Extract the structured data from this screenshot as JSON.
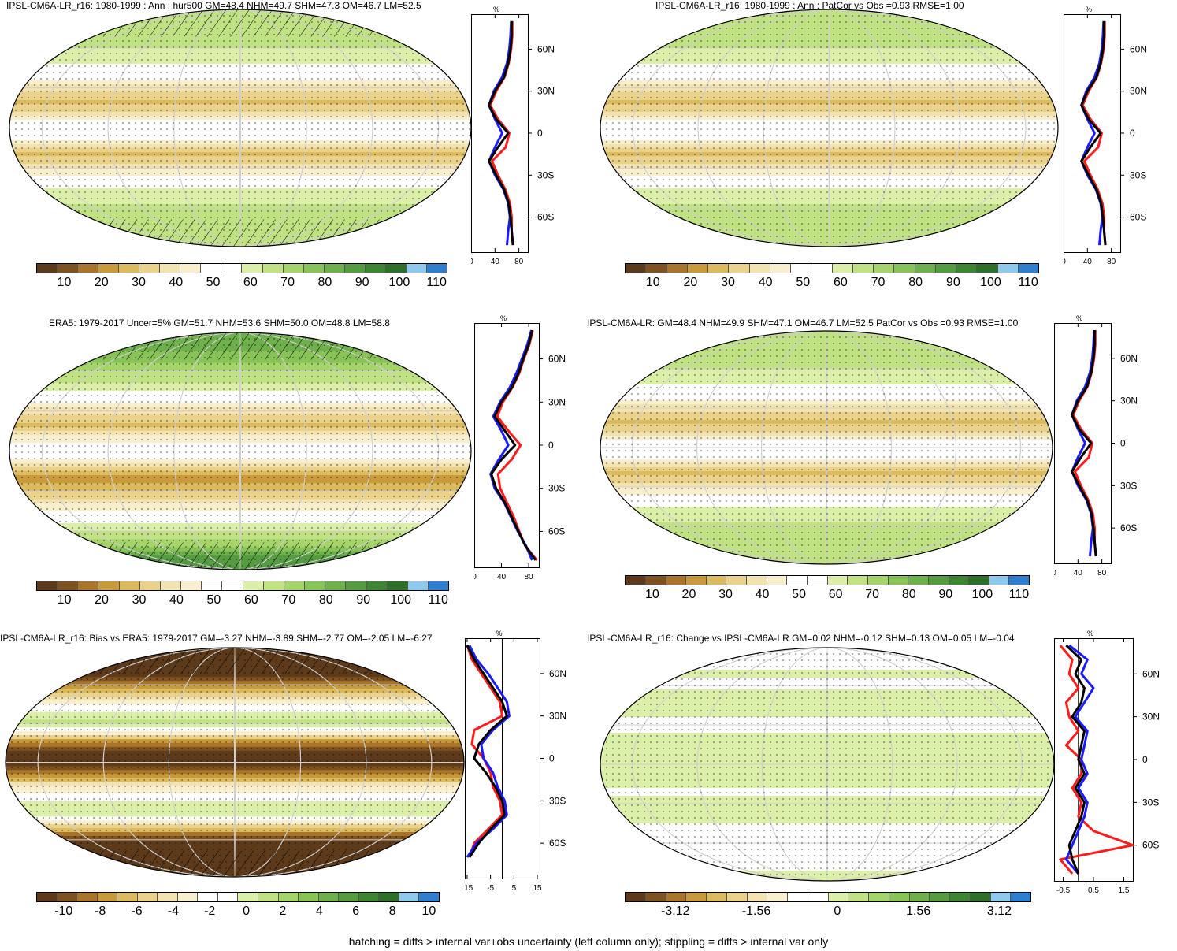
{
  "footer": "hatching = diffs > internal var+obs uncertainty (left column only); stippling = diffs > internal var only",
  "colors": {
    "model": "#000000",
    "obs_blue": "#1a1aff",
    "obs_red": "#ff1a1a"
  },
  "palettes": {
    "absolute": [
      "#5c3a1a",
      "#7f5221",
      "#a8752a",
      "#c89a3b",
      "#dcbb5e",
      "#ead28a",
      "#f3e3b0",
      "#f9efcf",
      "#ffffff",
      "#ffffff",
      "#dcefa8",
      "#c0e283",
      "#a4d46a",
      "#88c358",
      "#6eb04b",
      "#559b40",
      "#3e8533",
      "#2e6f2a",
      "#8ec9ee",
      "#2f7fd0"
    ],
    "diff": [
      "#5c3a1a",
      "#7f5221",
      "#a8752a",
      "#c89a3b",
      "#dcbb5e",
      "#ead28a",
      "#f3e3b0",
      "#f9efcf",
      "#ffffff",
      "#ffffff",
      "#dcefa8",
      "#c0e283",
      "#a4d46a",
      "#88c358",
      "#6eb04b",
      "#559b40",
      "#3e8533",
      "#2e6f2a",
      "#8ec9ee",
      "#2f7fd0"
    ]
  },
  "panels": [
    {
      "title": "IPSL-CM6A-LR_r16: 1980-1999 : Ann : hur500 GM=48.4 NHM=49.7 SHM=47.3 OM=46.7 LM=52.5",
      "colorbar_labels": [
        "10",
        "20",
        "30",
        "40",
        "50",
        "60",
        "70",
        "80",
        "90",
        "100",
        "110"
      ],
      "profile_unit": "%",
      "profile_xticks": [
        "0",
        "40",
        "80"
      ],
      "profile_yticks": [
        "60N",
        "30N",
        "0",
        "30S",
        "60S"
      ],
      "hatched": true
    },
    {
      "title": "IPSL-CM6A-LR_r16: 1980-1999 : Ann : PatCor vs Obs =0.93 RMSE=1.00",
      "colorbar_labels": [
        "10",
        "20",
        "30",
        "40",
        "50",
        "60",
        "70",
        "80",
        "90",
        "100",
        "110"
      ],
      "profile_unit": "%",
      "profile_xticks": [
        "0",
        "40",
        "80"
      ],
      "profile_yticks": [
        "60N",
        "30N",
        "0",
        "30S",
        "60S"
      ],
      "hatched": false
    },
    {
      "title": "ERA5: 1979-2017 Uncer=5% GM=51.7 NHM=53.6 SHM=50.0 OM=48.8 LM=58.8",
      "colorbar_labels": [
        "10",
        "20",
        "30",
        "40",
        "50",
        "60",
        "70",
        "80",
        "90",
        "100",
        "110"
      ],
      "profile_unit": "%",
      "profile_xticks": [
        "0",
        "40",
        "80"
      ],
      "profile_yticks": [
        "60N",
        "30N",
        "0",
        "30S",
        "60S"
      ],
      "hatched": true
    },
    {
      "title": "IPSL-CM6A-LR: GM=48.4 NHM=49.9 SHM=47.1 OM=46.7 LM=52.5 PatCor vs Obs =0.93 RMSE=1.00",
      "colorbar_labels": [
        "10",
        "20",
        "30",
        "40",
        "50",
        "60",
        "70",
        "80",
        "90",
        "100",
        "110"
      ],
      "profile_unit": "%",
      "profile_xticks": [
        "0",
        "40",
        "80"
      ],
      "profile_yticks": [
        "60N",
        "30N",
        "0",
        "30S",
        "60S"
      ],
      "hatched": false
    },
    {
      "title": "IPSL-CM6A-LR_r16: Bias vs ERA5: 1979-2017 GM=-3.27 NHM=-3.89 SHM=-2.77 OM=-2.05 LM=-6.27",
      "colorbar_labels": [
        "-10",
        "-8",
        "-6",
        "-4",
        "-2",
        "0",
        "2",
        "4",
        "6",
        "8",
        "10"
      ],
      "profile_unit": "%",
      "profile_xticks": [
        "-15",
        "-5",
        "5",
        "15"
      ],
      "profile_yticks": [
        "60N",
        "30N",
        "0",
        "30S",
        "60S"
      ],
      "hatched": true
    },
    {
      "title": "IPSL-CM6A-LR_r16: Change vs IPSL-CM6A-LR GM=0.02 NHM=-0.12 SHM=0.13 OM=0.05 LM=-0.04",
      "colorbar_labels": [
        "-3.12",
        "-1.56",
        "0",
        "1.56",
        "3.12"
      ],
      "profile_unit": "%",
      "profile_xticks": [
        "-0.5",
        "0.5",
        "1.5"
      ],
      "profile_yticks": [
        "60N",
        "30N",
        "0",
        "30S",
        "60S"
      ],
      "hatched": false
    }
  ],
  "chart_data": [
    {
      "type": "heatmap",
      "title": "IPSL-CM6A-LR_r16: 1980-1999 : Ann : hur500 GM=48.4 NHM=49.7 SHM=47.3 OM=46.7 LM=52.5",
      "colorbar": [
        10,
        20,
        30,
        40,
        50,
        60,
        70,
        80,
        90,
        100,
        110
      ],
      "zonal_profile": {
        "xlabel": "%",
        "xlim": [
          0,
          95
        ],
        "lat": [
          80,
          70,
          60,
          50,
          40,
          30,
          20,
          10,
          0,
          -10,
          -20,
          -30,
          -40,
          -50,
          -60,
          -70,
          -80
        ],
        "series": [
          {
            "color": "black",
            "values": [
              68,
              68,
              66,
              62,
              55,
              40,
              30,
              42,
              62,
              45,
              30,
              42,
              55,
              63,
              66,
              68,
              70
            ]
          },
          {
            "color": "blue",
            "values": [
              67,
              66,
              64,
              60,
              52,
              38,
              30,
              40,
              52,
              40,
              30,
              40,
              54,
              62,
              65,
              62,
              60
            ]
          },
          {
            "color": "red",
            "values": [
              69,
              69,
              67,
              63,
              56,
              42,
              32,
              45,
              64,
              58,
              35,
              45,
              57,
              65,
              68,
              68,
              70
            ]
          }
        ]
      }
    },
    {
      "type": "heatmap",
      "title": "IPSL-CM6A-LR_r16: 1980-1999 : Ann : PatCor vs Obs =0.93 RMSE=1.00",
      "colorbar": [
        10,
        20,
        30,
        40,
        50,
        60,
        70,
        80,
        90,
        100,
        110
      ],
      "zonal_profile": {
        "xlabel": "%",
        "xlim": [
          0,
          95
        ],
        "lat": [
          80,
          70,
          60,
          50,
          40,
          30,
          20,
          10,
          0,
          -10,
          -20,
          -30,
          -40,
          -50,
          -60,
          -70,
          -80
        ],
        "series": [
          {
            "color": "black",
            "values": [
              68,
              68,
              66,
              62,
              55,
              40,
              30,
              42,
              62,
              45,
              30,
              42,
              55,
              63,
              66,
              68,
              70
            ]
          },
          {
            "color": "blue",
            "values": [
              67,
              66,
              64,
              60,
              52,
              38,
              30,
              40,
              52,
              40,
              30,
              40,
              54,
              62,
              65,
              62,
              60
            ]
          },
          {
            "color": "red",
            "values": [
              69,
              69,
              67,
              63,
              56,
              42,
              32,
              45,
              64,
              58,
              35,
              45,
              57,
              65,
              68,
              68,
              70
            ]
          }
        ]
      }
    },
    {
      "type": "heatmap",
      "title": "ERA5: 1979-2017 Uncer=5% GM=51.7 NHM=53.6 SHM=50.0 OM=48.8 LM=58.8",
      "colorbar": [
        10,
        20,
        30,
        40,
        50,
        60,
        70,
        80,
        90,
        100,
        110
      ],
      "zonal_profile": {
        "xlabel": "%",
        "xlim": [
          0,
          95
        ],
        "lat": [
          80,
          70,
          60,
          50,
          40,
          30,
          20,
          10,
          0,
          -10,
          -20,
          -30,
          -40,
          -50,
          -60,
          -70,
          -80
        ],
        "series": [
          {
            "color": "black",
            "values": [
              85,
              80,
              72,
              65,
              55,
              40,
              30,
              45,
              60,
              40,
              25,
              32,
              45,
              55,
              65,
              75,
              90
            ]
          },
          {
            "color": "blue",
            "values": [
              84,
              78,
              70,
              62,
              52,
              38,
              28,
              40,
              50,
              36,
              24,
              30,
              44,
              54,
              64,
              76,
              85
            ]
          },
          {
            "color": "red",
            "values": [
              86,
              81,
              73,
              66,
              56,
              42,
              34,
              50,
              68,
              55,
              35,
              38,
              48,
              58,
              66,
              75,
              92
            ]
          }
        ]
      }
    },
    {
      "type": "heatmap",
      "title": "IPSL-CM6A-LR: GM=48.4 NHM=49.9 SHM=47.1 OM=46.7 LM=52.5 PatCor vs Obs =0.93 RMSE=1.00",
      "colorbar": [
        10,
        20,
        30,
        40,
        50,
        60,
        70,
        80,
        90,
        100,
        110
      ],
      "zonal_profile": {
        "xlabel": "%",
        "xlim": [
          0,
          95
        ],
        "lat": [
          80,
          70,
          60,
          50,
          40,
          30,
          20,
          10,
          0,
          -10,
          -20,
          -30,
          -40,
          -50,
          -60,
          -70,
          -80
        ],
        "series": [
          {
            "color": "black",
            "values": [
              68,
              68,
              66,
              62,
              55,
              40,
              30,
              42,
              62,
              45,
              30,
              42,
              55,
              63,
              66,
              68,
              70
            ]
          },
          {
            "color": "blue",
            "values": [
              67,
              66,
              64,
              60,
              52,
              38,
              30,
              40,
              52,
              40,
              30,
              40,
              54,
              62,
              65,
              62,
              60
            ]
          },
          {
            "color": "red",
            "values": [
              69,
              69,
              67,
              63,
              56,
              42,
              32,
              45,
              64,
              58,
              35,
              45,
              57,
              65,
              68,
              68,
              70
            ]
          }
        ]
      }
    },
    {
      "type": "heatmap",
      "title": "IPSL-CM6A-LR_r16: Bias vs ERA5: 1979-2017 GM=-3.27 NHM=-3.89 SHM=-2.77 OM=-2.05 LM=-6.27",
      "colorbar": [
        -10,
        -8,
        -6,
        -4,
        -2,
        0,
        2,
        4,
        6,
        8,
        10
      ],
      "zonal_profile": {
        "xlabel": "%",
        "xlim": [
          -16,
          16
        ],
        "lat": [
          80,
          70,
          60,
          50,
          40,
          30,
          20,
          10,
          0,
          -10,
          -20,
          -30,
          -40,
          -50,
          -60,
          -70
        ],
        "series": [
          {
            "color": "black",
            "values": [
              -15,
              -12,
              -8,
              -4,
              0,
              2,
              -5,
              -10,
              -12,
              -7,
              -3,
              0,
              1,
              -5,
              -10,
              -14
            ]
          },
          {
            "color": "blue",
            "values": [
              -14,
              -11,
              -6,
              -2,
              2,
              3,
              -4,
              -9,
              -8,
              -4,
              -2,
              1,
              2,
              -4,
              -11,
              -15
            ]
          },
          {
            "color": "red",
            "values": [
              -15,
              -13,
              -9,
              -5,
              -1,
              0,
              -12,
              -13,
              -8,
              -5,
              -4,
              -1,
              0,
              -6,
              -12,
              -14
            ]
          }
        ]
      }
    },
    {
      "type": "heatmap",
      "title": "IPSL-CM6A-LR_r16: Change vs IPSL-CM6A-LR GM=0.02 NHM=-0.12 SHM=0.13 OM=0.05 LM=-0.04",
      "colorbar": [
        -3.12,
        -1.56,
        0,
        1.56,
        3.12
      ],
      "zonal_profile": {
        "xlabel": "%",
        "xlim": [
          -0.8,
          1.8
        ],
        "lat": [
          80,
          70,
          60,
          50,
          40,
          30,
          20,
          10,
          0,
          -10,
          -20,
          -30,
          -40,
          -50,
          -60,
          -70,
          -80
        ],
        "series": [
          {
            "color": "black",
            "values": [
              -0.4,
              0.1,
              -0.1,
              0.2,
              0.1,
              -0.2,
              0.2,
              0.1,
              0.0,
              0.2,
              -0.1,
              0.2,
              0.1,
              -0.1,
              -0.3,
              -0.2,
              0.0
            ]
          },
          {
            "color": "blue",
            "values": [
              -0.3,
              0.3,
              0.1,
              0.5,
              0.2,
              -0.1,
              0.3,
              0.2,
              0.1,
              0.3,
              0.0,
              0.3,
              0.2,
              0.0,
              -0.2,
              -0.4,
              0.0
            ]
          },
          {
            "color": "red",
            "values": [
              -0.6,
              -0.2,
              -0.3,
              0.0,
              -0.4,
              -0.3,
              0.0,
              -0.4,
              0.1,
              0.1,
              -0.2,
              0.1,
              0.0,
              0.5,
              1.8,
              -0.6,
              -0.2
            ]
          }
        ]
      }
    }
  ]
}
